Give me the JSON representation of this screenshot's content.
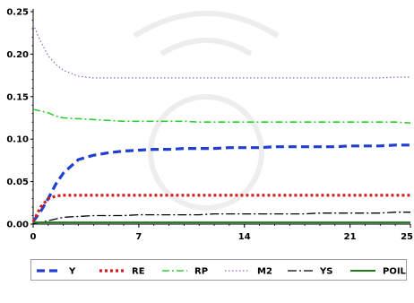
{
  "chart_data": {
    "type": "line",
    "title": "",
    "xlabel": "",
    "ylabel": "",
    "xlim": [
      0,
      25
    ],
    "ylim": [
      0,
      0.25
    ],
    "x_ticks": [
      0,
      7,
      14,
      21,
      25
    ],
    "x_tick_labels": [
      "0",
      "7",
      "14",
      "21",
      "25"
    ],
    "y_ticks": [
      0,
      0.05,
      0.1,
      0.15,
      0.2,
      0.25
    ],
    "y_tick_labels": [
      "0.00",
      "0.05",
      "0.10",
      "0.15",
      "0.20",
      "0.25"
    ],
    "grid": false,
    "legend_position": "bottom",
    "x": [
      0,
      0.5,
      1,
      1.5,
      2,
      3,
      4,
      5,
      6,
      7,
      8,
      9,
      10,
      11,
      12,
      13,
      14,
      15,
      16,
      17,
      18,
      19,
      20,
      21,
      22,
      23,
      24,
      25
    ],
    "series": [
      {
        "name": "Y",
        "color": "#1f3fd0",
        "dash": "dash-heavy",
        "values": [
          0.003,
          0.015,
          0.03,
          0.047,
          0.06,
          0.076,
          0.081,
          0.084,
          0.086,
          0.087,
          0.088,
          0.088,
          0.089,
          0.089,
          0.089,
          0.09,
          0.09,
          0.09,
          0.091,
          0.091,
          0.091,
          0.091,
          0.091,
          0.092,
          0.092,
          0.092,
          0.093,
          0.093
        ]
      },
      {
        "name": "RE",
        "color": "#d01f1f",
        "dash": "dot-heavy",
        "values": [
          0.003,
          0.02,
          0.03,
          0.033,
          0.034,
          0.034,
          0.034,
          0.034,
          0.034,
          0.034,
          0.034,
          0.034,
          0.034,
          0.034,
          0.034,
          0.034,
          0.034,
          0.034,
          0.034,
          0.034,
          0.034,
          0.034,
          0.034,
          0.034,
          0.034,
          0.034,
          0.034,
          0.034
        ]
      },
      {
        "name": "RP",
        "color": "#33cc33",
        "dash": "dashdot",
        "values": [
          0.135,
          0.133,
          0.131,
          0.127,
          0.125,
          0.124,
          0.123,
          0.122,
          0.121,
          0.121,
          0.121,
          0.121,
          0.121,
          0.12,
          0.12,
          0.12,
          0.12,
          0.12,
          0.12,
          0.12,
          0.12,
          0.12,
          0.12,
          0.12,
          0.12,
          0.12,
          0.12,
          0.119
        ]
      },
      {
        "name": "M2",
        "color": "#9b5fd0",
        "dash": "dot",
        "values": [
          0.235,
          0.215,
          0.198,
          0.188,
          0.181,
          0.174,
          0.172,
          0.172,
          0.172,
          0.172,
          0.172,
          0.172,
          0.172,
          0.172,
          0.172,
          0.172,
          0.172,
          0.172,
          0.172,
          0.172,
          0.172,
          0.172,
          0.172,
          0.172,
          0.172,
          0.172,
          0.173,
          0.173
        ]
      },
      {
        "name": "YS",
        "color": "#000000",
        "dash": "dashdot-long",
        "values": [
          0.001,
          0.002,
          0.004,
          0.006,
          0.008,
          0.009,
          0.01,
          0.01,
          0.01,
          0.011,
          0.011,
          0.011,
          0.011,
          0.011,
          0.012,
          0.012,
          0.012,
          0.012,
          0.012,
          0.012,
          0.012,
          0.013,
          0.013,
          0.013,
          0.013,
          0.013,
          0.014,
          0.014
        ]
      },
      {
        "name": "POIL",
        "color": "#1e7a1e",
        "dash": "solid",
        "values": [
          0.002,
          0.002,
          0.002,
          0.002,
          0.002,
          0.002,
          0.002,
          0.002,
          0.002,
          0.002,
          0.002,
          0.002,
          0.002,
          0.002,
          0.002,
          0.002,
          0.002,
          0.002,
          0.002,
          0.002,
          0.002,
          0.002,
          0.002,
          0.002,
          0.002,
          0.002,
          0.002,
          0.002
        ]
      }
    ]
  }
}
